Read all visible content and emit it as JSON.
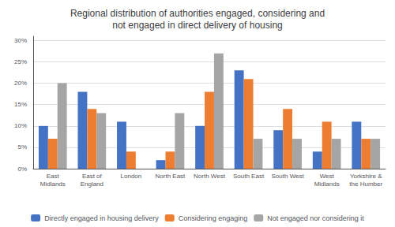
{
  "chart_data": {
    "type": "bar",
    "title": "Regional distribution of authorities engaged, considering and\nnot engaged in direct delivery of housing",
    "categories": [
      "East\nMidlands",
      "East of\nEngland",
      "London",
      "North East",
      "North West",
      "South East",
      "South West",
      "West\nMidlands",
      "Yorkshire &\nthe Humber"
    ],
    "series": [
      {
        "name": "Directly engaged in housing delivery",
        "color": "#4472C4",
        "values": [
          10,
          18,
          11,
          2,
          10,
          23,
          9,
          4,
          11
        ]
      },
      {
        "name": "Considering engaging",
        "color": "#ED7D31",
        "values": [
          7,
          14,
          4,
          4,
          18,
          21,
          14,
          11,
          7
        ]
      },
      {
        "name": "Not engaged nor considering it",
        "color": "#A5A5A5",
        "values": [
          20,
          13,
          0,
          13,
          27,
          7,
          7,
          7,
          7
        ]
      }
    ],
    "ylim": [
      0,
      31
    ],
    "yticks": [
      {
        "value": 0,
        "label": "0%"
      },
      {
        "value": 5,
        "label": "5%"
      },
      {
        "value": 10,
        "label": "10%"
      },
      {
        "value": 15,
        "label": "15%"
      },
      {
        "value": 20,
        "label": "20%"
      },
      {
        "value": 25,
        "label": "25%"
      },
      {
        "value": 30,
        "label": "30%"
      }
    ],
    "grid": true,
    "legend": "bottom"
  }
}
